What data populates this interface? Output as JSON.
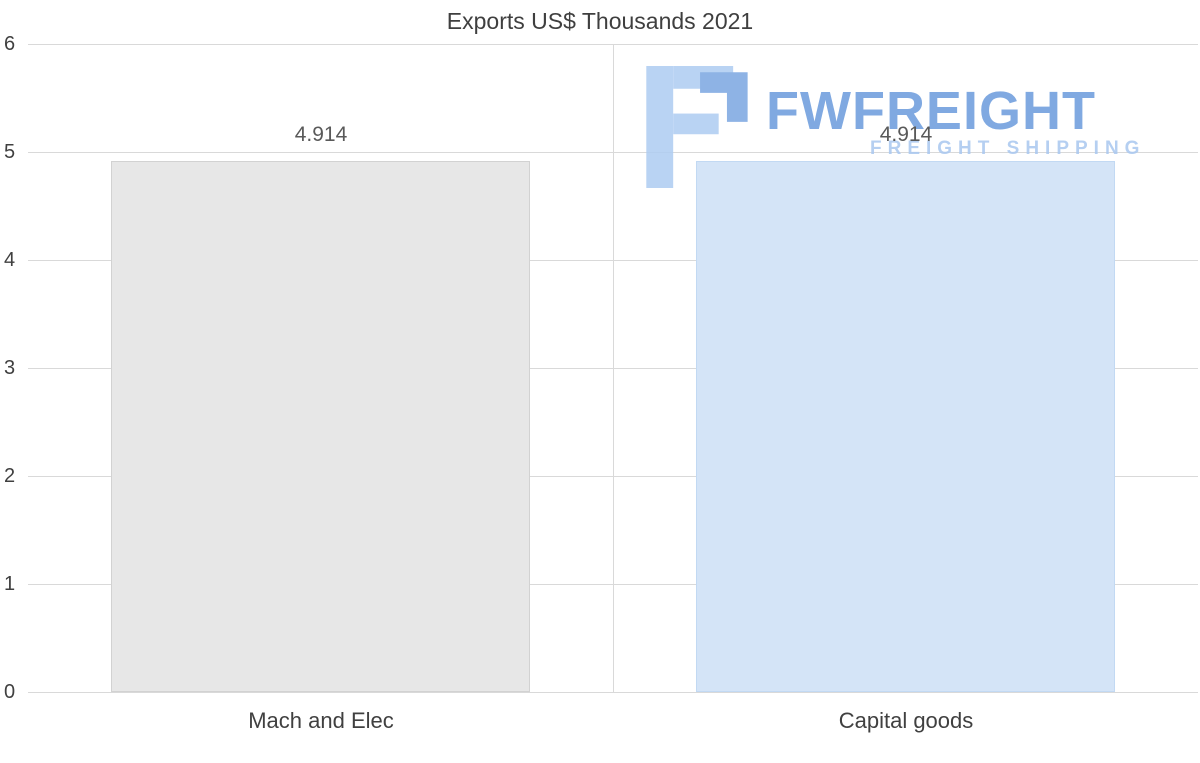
{
  "title": "Exports US$ Thousands 2021",
  "watermark": {
    "brand": "FWFREIGHT",
    "tagline": "FREIGHT SHIPPING"
  },
  "colors": {
    "grid": "#d9d9d9",
    "axis_text": "#404040",
    "value_label_text": "#595959",
    "watermark_blue": "#6f9edd",
    "watermark_light_blue": "#b0cdf2",
    "watermark_mid_blue": "#7fa9e2"
  },
  "chart_data": {
    "type": "bar",
    "title": "Exports US$ Thousands 2021",
    "categories": [
      "Mach and Elec",
      "Capital goods"
    ],
    "values": [
      4.914,
      4.914
    ],
    "value_labels": [
      "4.914",
      "4.914"
    ],
    "ylim": [
      0,
      6
    ],
    "yticks": [
      0,
      1,
      2,
      3,
      4,
      5,
      6
    ],
    "grid": true,
    "legend": false,
    "xlabel": "",
    "ylabel": "",
    "bar_fills": [
      "#e7e7e7",
      "#d4e4f7"
    ],
    "bar_borders": [
      "#d2d2d2",
      "#c2d9f3"
    ]
  }
}
